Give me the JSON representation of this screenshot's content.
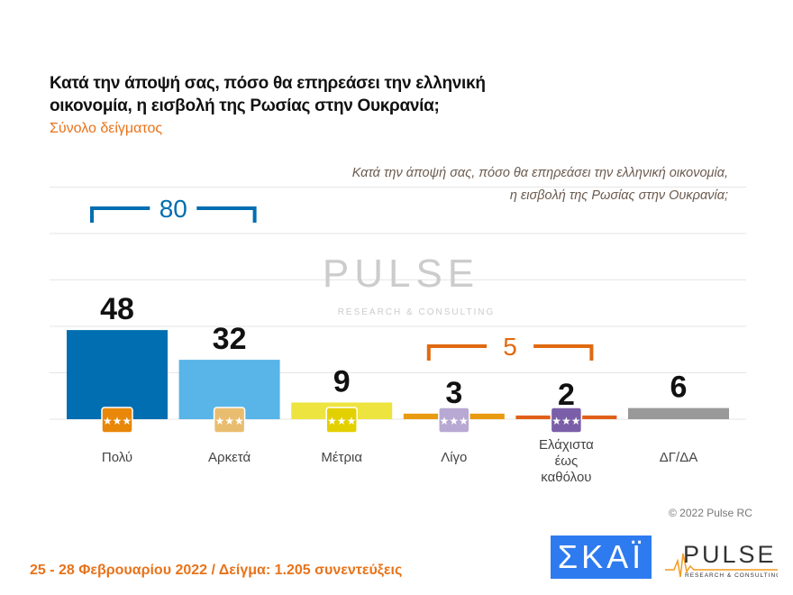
{
  "title": "Κατά την άποψή σας, πόσο θα επηρεάσει την ελληνική οικονομία, η εισβολή της Ρωσίας στην Ουκρανία;",
  "subtitle": "Σύνολο δείγματος",
  "question_line1": "Κατά την άποψή σας, πόσο θα επηρεάσει την ελληνική οικονομία,",
  "question_line2": "η εισβολή της Ρωσίας στην Ουκρανία;",
  "footer": "25 - 28  Φεβρουαρίου  2022  /  Δείγμα:  1.205 συνεντεύξεις",
  "copyright": "© 2022 Pulse RC",
  "logos": {
    "skai": "ΣΚΑΪ",
    "pulse": "PULSE",
    "pulse_sub": "RESEARCH & CONSULTING"
  },
  "chart_data": {
    "type": "bar",
    "categories": [
      "Πολύ",
      "Αρκετά",
      "Μέτρια",
      "Λίγο",
      "Ελάχιστα έως καθόλου",
      "ΔΓ/ΔΑ"
    ],
    "values": [
      48,
      32,
      9,
      3,
      2,
      6
    ],
    "colors": [
      "#006eb0",
      "#59b4e8",
      "#eee440",
      "#e89a10",
      "#e0601a",
      "#999999"
    ],
    "badge_colors": [
      "#e8870a",
      "#e9bd70",
      "#e3d000",
      "#b7a9d3",
      "#7a5fa8",
      null
    ],
    "ylim": [
      0,
      120
    ],
    "groups": [
      {
        "label": "80",
        "from": 0,
        "to": 1,
        "color": "#006eb0"
      },
      {
        "label": "5",
        "from": 3,
        "to": 4,
        "color": "#e06a10"
      }
    ]
  }
}
